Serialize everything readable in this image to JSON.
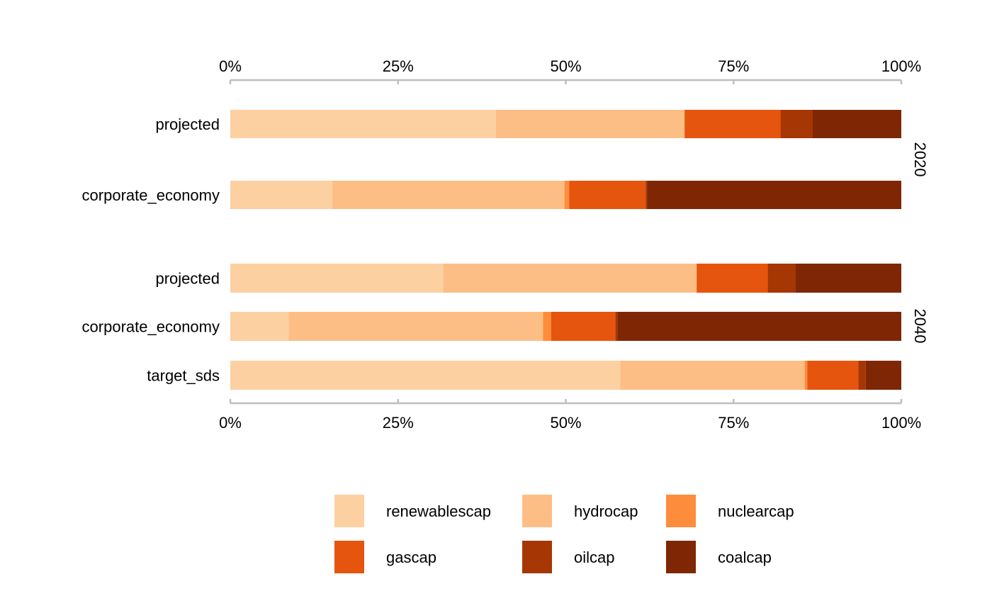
{
  "chart_data": {
    "type": "bar",
    "orientation": "horizontal",
    "stacked": true,
    "scale": "percent",
    "xlim": [
      0,
      100
    ],
    "x_ticks": [
      "0%",
      "25%",
      "50%",
      "75%",
      "100%"
    ],
    "title": "",
    "xlabel": "",
    "ylabel": "",
    "grid": false,
    "legend_position": "bottom",
    "components": [
      {
        "name": "renewablescap",
        "color": "#FDD0A2"
      },
      {
        "name": "hydrocap",
        "color": "#FDBE85"
      },
      {
        "name": "nuclearcap",
        "color": "#FD8D3C"
      },
      {
        "name": "gascap",
        "color": "#E6550D"
      },
      {
        "name": "oilcap",
        "color": "#A63603"
      },
      {
        "name": "coalcap",
        "color": "#7F2704"
      }
    ],
    "panels": [
      {
        "label": "2020",
        "bars": [
          {
            "label": "projected",
            "values": [
              39.6,
              28.1,
              0.0,
              14.3,
              4.8,
              13.2
            ]
          },
          {
            "label": "corporate_economy",
            "values": [
              15.2,
              34.6,
              0.7,
              11.4,
              0.2,
              37.9
            ]
          }
        ]
      },
      {
        "label": "2040",
        "bars": [
          {
            "label": "projected",
            "values": [
              31.7,
              37.8,
              0.0,
              10.6,
              4.1,
              15.8
            ]
          },
          {
            "label": "corporate_economy",
            "values": [
              8.7,
              37.9,
              1.2,
              9.6,
              0.3,
              42.3
            ]
          },
          {
            "label": "target_sds",
            "values": [
              58.1,
              27.5,
              0.4,
              7.6,
              1.1,
              5.3
            ]
          }
        ]
      }
    ]
  }
}
